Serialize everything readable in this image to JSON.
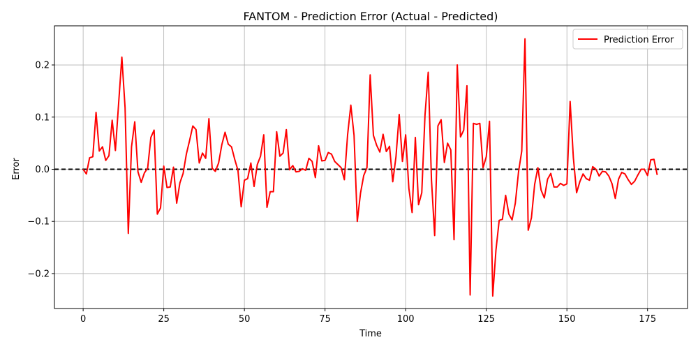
{
  "chart_data": {
    "type": "line",
    "title": "FANTOM - Prediction Error (Actual - Predicted)",
    "xlabel": "Time",
    "ylabel": "Error",
    "xlim": [
      -8.9,
      187.4
    ],
    "ylim": [
      -0.267,
      0.275
    ],
    "xticks": [
      0,
      25,
      50,
      75,
      100,
      125,
      150,
      175
    ],
    "xtick_labels": [
      "0",
      "25",
      "50",
      "75",
      "100",
      "125",
      "150",
      "175"
    ],
    "yticks": [
      -0.2,
      -0.1,
      0.0,
      0.1,
      0.2
    ],
    "ytick_labels": [
      "−0.2",
      "−0.1",
      "0.0",
      "0.1",
      "0.2"
    ],
    "grid": true,
    "legend_position": "top-right",
    "zero_line": {
      "y": 0,
      "style": "dashed",
      "color": "#000000"
    },
    "series": [
      {
        "name": "Prediction Error",
        "color": "#ff0000",
        "x": [
          0,
          1,
          2,
          3,
          4,
          5,
          6,
          7,
          8,
          9,
          10,
          11,
          12,
          13,
          14,
          15,
          16,
          17,
          18,
          19,
          20,
          21,
          22,
          23,
          24,
          25,
          26,
          27,
          28,
          29,
          30,
          31,
          32,
          33,
          34,
          35,
          36,
          37,
          38,
          39,
          40,
          41,
          42,
          43,
          44,
          45,
          46,
          47,
          48,
          49,
          50,
          51,
          52,
          53,
          54,
          55,
          56,
          57,
          58,
          59,
          60,
          61,
          62,
          63,
          64,
          65,
          66,
          67,
          68,
          69,
          70,
          71,
          72,
          73,
          74,
          75,
          76,
          77,
          78,
          79,
          80,
          81,
          82,
          83,
          84,
          85,
          86,
          87,
          88,
          89,
          90,
          91,
          92,
          93,
          94,
          95,
          96,
          97,
          98,
          99,
          100,
          101,
          102,
          103,
          104,
          105,
          106,
          107,
          108,
          109,
          110,
          111,
          112,
          113,
          114,
          115,
          116,
          117,
          118,
          119,
          120,
          121,
          122,
          123,
          124,
          125,
          126,
          127,
          128,
          129,
          130,
          131,
          132,
          133,
          134,
          135,
          136,
          137,
          138,
          139,
          140,
          141,
          142,
          143,
          144,
          145,
          146,
          147,
          148,
          149,
          150,
          151,
          152,
          153,
          154,
          155,
          156,
          157,
          158,
          159,
          160,
          161,
          162,
          163,
          164,
          165,
          166,
          167,
          168,
          169,
          170,
          171,
          172,
          173,
          174,
          175,
          176,
          177,
          178
        ],
        "values": [
          0.0,
          -0.009,
          0.022,
          0.024,
          0.109,
          0.035,
          0.043,
          0.017,
          0.026,
          0.094,
          0.036,
          0.126,
          0.215,
          0.118,
          -0.123,
          0.043,
          0.091,
          -0.005,
          -0.025,
          -0.007,
          0.002,
          0.061,
          0.075,
          -0.086,
          -0.074,
          0.006,
          -0.035,
          -0.034,
          0.004,
          -0.065,
          -0.026,
          -0.008,
          0.029,
          0.055,
          0.083,
          0.076,
          0.012,
          0.031,
          0.021,
          0.097,
          0.002,
          -0.004,
          0.012,
          0.047,
          0.071,
          0.048,
          0.043,
          0.019,
          -0.002,
          -0.072,
          -0.021,
          -0.018,
          0.012,
          -0.033,
          0.009,
          0.025,
          0.066,
          -0.073,
          -0.043,
          -0.043,
          0.072,
          0.025,
          0.031,
          0.076,
          -0.001,
          0.007,
          -0.005,
          -0.004,
          0.001,
          -0.002,
          0.021,
          0.015,
          -0.016,
          0.045,
          0.016,
          0.017,
          0.032,
          0.029,
          0.015,
          0.009,
          0.003,
          -0.02,
          0.066,
          0.123,
          0.065,
          -0.1,
          -0.046,
          -0.012,
          0.003,
          0.181,
          0.065,
          0.046,
          0.033,
          0.067,
          0.034,
          0.044,
          -0.024,
          0.024,
          0.105,
          0.015,
          0.066,
          -0.037,
          -0.083,
          0.061,
          -0.068,
          -0.045,
          0.104,
          0.186,
          -0.02,
          -0.127,
          0.083,
          0.095,
          0.013,
          0.05,
          0.037,
          -0.135,
          0.2,
          0.062,
          0.075,
          0.16,
          -0.241,
          0.088,
          0.086,
          0.088,
          0.003,
          0.024,
          0.092,
          -0.243,
          -0.155,
          -0.098,
          -0.096,
          -0.05,
          -0.086,
          -0.097,
          -0.065,
          -0.005,
          0.035,
          0.25,
          -0.117,
          -0.093,
          -0.029,
          0.003,
          -0.04,
          -0.055,
          -0.019,
          -0.008,
          -0.034,
          -0.034,
          -0.027,
          -0.031,
          -0.028,
          0.13,
          0.022,
          -0.045,
          -0.024,
          -0.009,
          -0.018,
          -0.021,
          0.005,
          0.0,
          -0.013,
          -0.004,
          -0.005,
          -0.013,
          -0.028,
          -0.056,
          -0.019,
          -0.006,
          -0.009,
          -0.02,
          -0.029,
          -0.023,
          -0.011,
          0.0,
          0.0,
          -0.012,
          0.018,
          0.019,
          -0.011
        ]
      }
    ]
  }
}
